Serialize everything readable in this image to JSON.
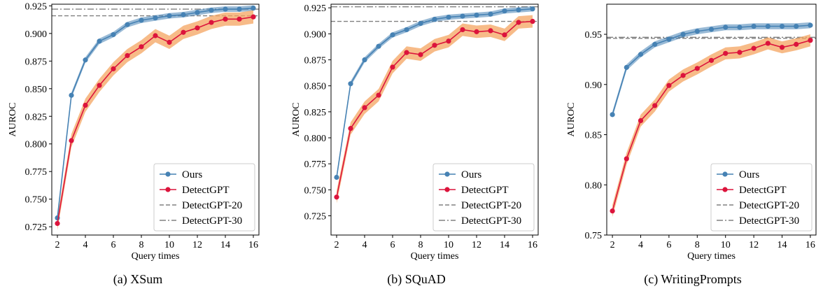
{
  "chart_data": [
    {
      "type": "line",
      "caption": "(a) XSum",
      "xlabel": "Query times",
      "ylabel": "AUROC",
      "xlim": [
        1.6,
        16.4
      ],
      "ylim": [
        0.7175,
        0.9265
      ],
      "xticks": [
        2,
        4,
        6,
        8,
        10,
        12,
        14,
        16
      ],
      "yticks": [
        0.725,
        0.75,
        0.775,
        0.8,
        0.825,
        0.85,
        0.875,
        0.9,
        0.925
      ],
      "ytick_labels": [
        "0.725",
        "0.750",
        "0.775",
        "0.800",
        "0.825",
        "0.850",
        "0.875",
        "0.900",
        "0.925"
      ],
      "grid": false,
      "legend_position": "bottom-right",
      "x": [
        2,
        3,
        4,
        5,
        6,
        7,
        8,
        9,
        10,
        11,
        12,
        13,
        14,
        15,
        16
      ],
      "series": [
        {
          "name": "Ours",
          "color": "#4682b4",
          "values": [
            0.733,
            0.844,
            0.876,
            0.893,
            0.899,
            0.908,
            0.912,
            0.914,
            0.916,
            0.917,
            0.919,
            0.921,
            0.922,
            0.922,
            0.923
          ],
          "band": 0.0025
        },
        {
          "name": "DetectGPT",
          "color": "#dc143c",
          "values": [
            0.728,
            0.803,
            0.835,
            0.853,
            0.868,
            0.88,
            0.888,
            0.898,
            0.892,
            0.901,
            0.905,
            0.91,
            0.913,
            0.913,
            0.915
          ],
          "band": 0.006
        }
      ],
      "reference_lines": [
        {
          "name": "DetectGPT-20",
          "value": 0.916,
          "style": "dashed",
          "color": "#808080"
        },
        {
          "name": "DetectGPT-30",
          "value": 0.922,
          "style": "dashdot",
          "color": "#808080"
        }
      ]
    },
    {
      "type": "line",
      "caption": "(b) SQuAD",
      "xlabel": "Query times",
      "ylabel": "AUROC",
      "xlim": [
        1.6,
        16.4
      ],
      "ylim": [
        0.7065,
        0.9285
      ],
      "xticks": [
        2,
        4,
        6,
        8,
        10,
        12,
        14,
        16
      ],
      "yticks": [
        0.725,
        0.75,
        0.775,
        0.8,
        0.825,
        0.85,
        0.875,
        0.9,
        0.925
      ],
      "ytick_labels": [
        "0.725",
        "0.750",
        "0.775",
        "0.800",
        "0.825",
        "0.850",
        "0.875",
        "0.900",
        "0.925"
      ],
      "grid": false,
      "legend_position": "bottom-right",
      "x": [
        2,
        3,
        4,
        5,
        6,
        7,
        8,
        9,
        10,
        11,
        12,
        13,
        14,
        15,
        16
      ],
      "series": [
        {
          "name": "Ours",
          "color": "#4682b4",
          "values": [
            0.762,
            0.852,
            0.875,
            0.888,
            0.899,
            0.904,
            0.91,
            0.914,
            0.916,
            0.917,
            0.918,
            0.919,
            0.922,
            0.923,
            0.924
          ],
          "band": 0.0025
        },
        {
          "name": "DetectGPT",
          "color": "#dc143c",
          "values": [
            0.743,
            0.809,
            0.829,
            0.841,
            0.868,
            0.882,
            0.88,
            0.889,
            0.893,
            0.904,
            0.902,
            0.903,
            0.899,
            0.911,
            0.912
          ],
          "band": 0.006
        }
      ],
      "reference_lines": [
        {
          "name": "DetectGPT-20",
          "value": 0.912,
          "style": "dashed",
          "color": "#808080"
        },
        {
          "name": "DetectGPT-30",
          "value": 0.926,
          "style": "dashdot",
          "color": "#808080"
        }
      ]
    },
    {
      "type": "line",
      "caption": "(c) WritingPrompts",
      "xlabel": "Query times",
      "ylabel": "AUROC",
      "xlim": [
        1.6,
        16.4
      ],
      "ylim": [
        0.75,
        0.98
      ],
      "xticks": [
        2,
        4,
        6,
        8,
        10,
        12,
        14,
        16
      ],
      "yticks": [
        0.75,
        0.8,
        0.85,
        0.9,
        0.95
      ],
      "ytick_labels": [
        "0.75",
        "0.80",
        "0.85",
        "0.90",
        "0.95"
      ],
      "grid": false,
      "legend_position": "bottom-right",
      "x": [
        2,
        3,
        4,
        5,
        6,
        7,
        8,
        9,
        10,
        11,
        12,
        13,
        14,
        15,
        16
      ],
      "series": [
        {
          "name": "Ours",
          "color": "#4682b4",
          "values": [
            0.87,
            0.917,
            0.93,
            0.94,
            0.945,
            0.95,
            0.953,
            0.955,
            0.957,
            0.957,
            0.958,
            0.958,
            0.958,
            0.958,
            0.959
          ],
          "band": 0.003
        },
        {
          "name": "DetectGPT",
          "color": "#dc143c",
          "values": [
            0.774,
            0.826,
            0.864,
            0.879,
            0.899,
            0.909,
            0.916,
            0.924,
            0.931,
            0.932,
            0.936,
            0.941,
            0.937,
            0.94,
            0.944
          ],
          "band": 0.006
        }
      ],
      "reference_lines": [
        {
          "name": "DetectGPT-20",
          "value": 0.946,
          "style": "dashed",
          "color": "#808080"
        },
        {
          "name": "DetectGPT-30",
          "value": 0.947,
          "style": "dashdot",
          "color": "#808080"
        }
      ]
    }
  ]
}
